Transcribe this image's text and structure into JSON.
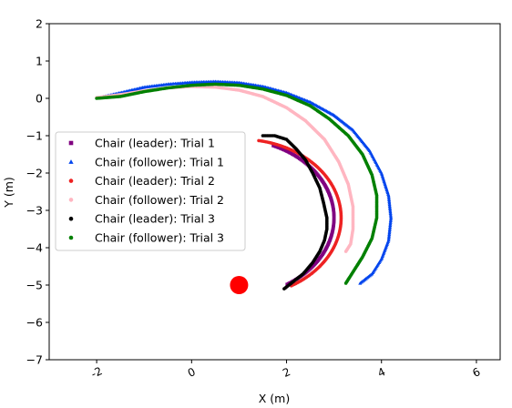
{
  "chart_data": {
    "type": "scatter",
    "xlabel": "X (m)",
    "ylabel": "Y (m)",
    "xlim": [
      -3,
      6.5
    ],
    "ylim": [
      -7,
      2
    ],
    "xticks": [
      -2,
      0,
      2,
      4,
      6
    ],
    "xtick_labels": [
      "-2",
      "0",
      "2",
      "4",
      "6"
    ],
    "yticks": [
      2,
      1,
      0,
      -1,
      -2,
      -3,
      -4,
      -5,
      -6,
      -7
    ],
    "ytick_labels": [
      "2",
      "1",
      "0",
      "−1",
      "−2",
      "−3",
      "−4",
      "−5",
      "−6",
      "−7"
    ],
    "grid": false,
    "legend_position": "center-left",
    "marker": {
      "x": 1.0,
      "y": -5.0,
      "color": "#ff0000"
    },
    "series": [
      {
        "name": "Chair (leader): Trial 1",
        "color": "#800080",
        "shape": "square",
        "center": [
          0.9,
          -3.2
        ],
        "radius": 2.1,
        "theta_start": 67,
        "theta_end": -58
      },
      {
        "name": "Chair (follower): Trial 1",
        "color": "#0044ee",
        "shape": "triangle",
        "x": [
          -1.85,
          -1.5,
          -1.0,
          -0.5,
          0.0,
          0.5,
          1.0,
          1.5,
          2.0,
          2.5,
          3.0,
          3.4,
          3.75,
          4.0,
          4.15,
          4.2,
          4.15,
          4.0,
          3.8,
          3.55
        ],
        "y": [
          0.05,
          0.15,
          0.3,
          0.38,
          0.43,
          0.45,
          0.42,
          0.32,
          0.15,
          -0.1,
          -0.45,
          -0.85,
          -1.4,
          -2.0,
          -2.6,
          -3.2,
          -3.8,
          -4.3,
          -4.7,
          -4.95
        ]
      },
      {
        "name": "Chair (leader): Trial 2",
        "color": "#ee2222",
        "shape": "circle",
        "center": [
          1.05,
          -3.2
        ],
        "radius": 2.1,
        "theta_start": 80,
        "theta_end": -60
      },
      {
        "name": "Chair (follower): Trial 2",
        "color": "#ffb6c1",
        "shape": "circle",
        "x": [
          -2.0,
          -1.5,
          -1.0,
          -0.5,
          0.0,
          0.5,
          1.0,
          1.5,
          2.0,
          2.4,
          2.8,
          3.1,
          3.3,
          3.4,
          3.4,
          3.35,
          3.25
        ],
        "y": [
          0.02,
          0.1,
          0.2,
          0.28,
          0.32,
          0.3,
          0.22,
          0.05,
          -0.25,
          -0.6,
          -1.1,
          -1.7,
          -2.3,
          -2.9,
          -3.5,
          -3.9,
          -4.1
        ]
      },
      {
        "name": "Chair (leader): Trial 3",
        "color": "#000000",
        "shape": "circle",
        "x": [
          1.5,
          1.75,
          2.0,
          2.2,
          2.4,
          2.55,
          2.7,
          2.78,
          2.85,
          2.85,
          2.8,
          2.7,
          2.55,
          2.35,
          2.1,
          1.95
        ],
        "y": [
          -1.0,
          -1.0,
          -1.1,
          -1.35,
          -1.65,
          -2.0,
          -2.4,
          -2.8,
          -3.2,
          -3.5,
          -3.8,
          -4.1,
          -4.4,
          -4.7,
          -4.95,
          -5.1
        ]
      },
      {
        "name": "Chair (follower): Trial 3",
        "color": "#008000",
        "shape": "circle",
        "x": [
          -2.0,
          -1.5,
          -1.0,
          -0.5,
          0.0,
          0.5,
          1.0,
          1.5,
          2.0,
          2.5,
          2.9,
          3.3,
          3.6,
          3.8,
          3.9,
          3.9,
          3.8,
          3.6,
          3.4,
          3.25
        ],
        "y": [
          0.0,
          0.05,
          0.18,
          0.28,
          0.35,
          0.38,
          0.35,
          0.25,
          0.08,
          -0.2,
          -0.55,
          -1.0,
          -1.5,
          -2.05,
          -2.6,
          -3.2,
          -3.75,
          -4.25,
          -4.65,
          -4.95
        ]
      }
    ]
  }
}
